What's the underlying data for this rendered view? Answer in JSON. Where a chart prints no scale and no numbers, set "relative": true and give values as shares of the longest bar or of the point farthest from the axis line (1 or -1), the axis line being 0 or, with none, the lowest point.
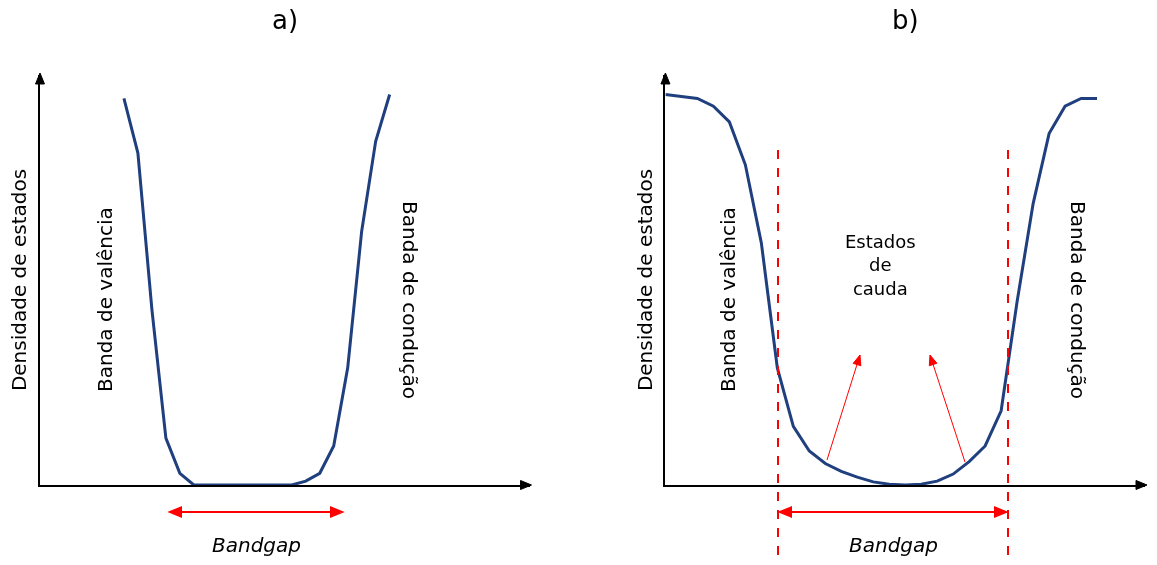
{
  "chart_data": [
    {
      "type": "line",
      "title": "a)",
      "ylabel": "Densidade de estados",
      "relative": true,
      "marker": "none",
      "line_style": "solid",
      "categories": [
        null,
        null,
        null,
        null,
        null,
        null,
        null,
        null,
        null,
        null,
        null,
        null,
        null,
        null,
        null,
        null,
        null,
        null,
        null,
        null,
        null,
        null,
        null,
        null,
        null,
        null,
        null,
        null,
        null,
        null,
        null,
        null,
        null,
        null,
        null,
        null
      ],
      "series": [
        {
          "color": "#1f3f7f",
          "values": [
            null,
            null,
            null,
            null,
            null,
            null,
            0.99,
            0.85,
            0.45,
            0.12,
            0.03,
            0,
            0,
            0,
            0,
            0,
            0,
            0,
            0,
            0.01,
            0.03,
            0.1,
            0.3,
            0.65,
            0.88,
            1,
            null,
            null,
            null,
            null,
            null,
            null,
            null,
            null,
            null,
            null
          ]
        }
      ],
      "annotations": [
        "Banda de valência",
        "Banda de condução",
        "Bandgap"
      ]
    },
    {
      "type": "line",
      "title": "b)",
      "ylabel": "Densidade de estados",
      "relative": true,
      "marker": "none",
      "line_style": "solid",
      "categories": [
        null,
        null,
        null,
        null,
        null,
        null,
        null,
        null,
        null,
        null,
        null,
        null,
        null,
        null,
        null,
        null,
        null,
        null,
        null,
        null,
        null,
        null,
        null,
        null,
        null,
        null,
        null,
        null,
        null,
        null,
        null
      ],
      "series": [
        {
          "color": "#1f3f7f",
          "values": [
            1,
            0.995,
            0.99,
            0.97,
            0.93,
            0.82,
            0.62,
            0.3,
            0.15,
            0.087,
            0.055,
            0.035,
            0.02,
            0.008,
            0.002,
            0,
            0.002,
            0.01,
            0.028,
            0.06,
            0.1,
            0.19,
            0.47,
            0.72,
            0.9,
            0.97,
            0.99,
            0.99,
            null,
            null,
            null
          ]
        }
      ],
      "annotations": [
        "Banda de valência",
        "Banda de condução",
        "Estados\nde\ncauda",
        "Bandgap"
      ]
    }
  ]
}
